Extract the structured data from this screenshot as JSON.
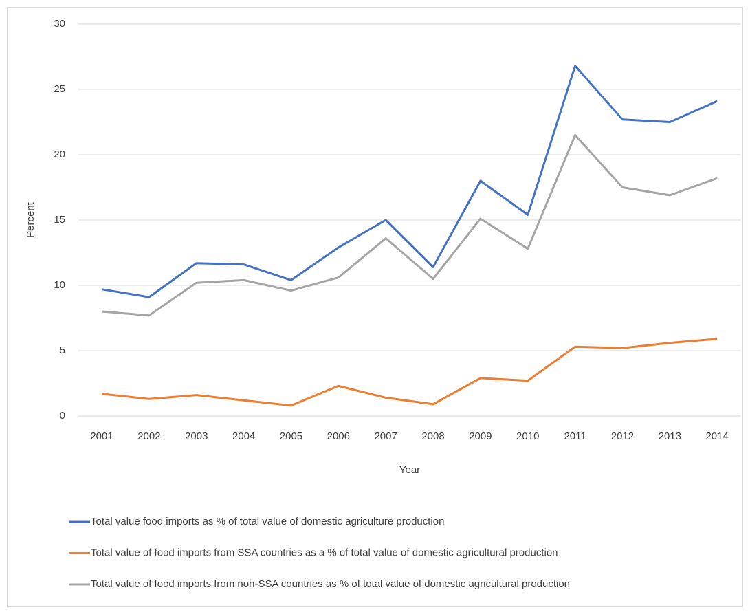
{
  "chart_data": {
    "type": "line",
    "x_label": "Year",
    "y_label": "Percent",
    "categories": [
      "2001",
      "2002",
      "2003",
      "2004",
      "2005",
      "2006",
      "2007",
      "2008",
      "2009",
      "2010",
      "2011",
      "2012",
      "2013",
      "2014"
    ],
    "series": [
      {
        "name": "Total value food imports as % of total value of domestic agriculture production",
        "color": "#4472c4",
        "values": [
          9.7,
          9.1,
          11.7,
          11.6,
          10.4,
          12.9,
          15.0,
          11.4,
          18.0,
          15.4,
          26.8,
          22.7,
          22.5,
          24.1
        ]
      },
      {
        "name": "Total value of food imports from SSA countries as a % of total value of domestic agricultural production",
        "color": "#ed7d31",
        "values": [
          1.7,
          1.3,
          1.6,
          1.2,
          0.8,
          2.3,
          1.4,
          0.9,
          2.9,
          2.7,
          5.3,
          5.2,
          5.6,
          5.9
        ]
      },
      {
        "name": "Total value of food imports from non-SSA countries as % of total value of domestic agricultural production",
        "color": "#a5a5a5",
        "values": [
          8.0,
          7.7,
          10.2,
          10.4,
          9.6,
          10.6,
          13.6,
          10.5,
          15.1,
          12.8,
          21.5,
          17.5,
          16.9,
          18.2
        ]
      }
    ],
    "ylim": [
      0,
      30
    ],
    "yticks": [
      0,
      5,
      10,
      15,
      20,
      25,
      30
    ],
    "grid": true,
    "legend": "bottom"
  }
}
